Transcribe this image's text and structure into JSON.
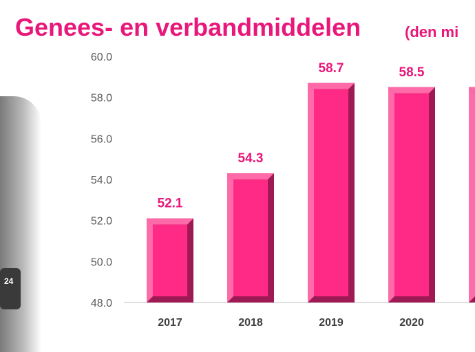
{
  "chart_data": {
    "type": "bar",
    "title": "Genees- en verbandmiddelen",
    "title_suffix": "(den mi",
    "categories": [
      "2017",
      "2018",
      "2019",
      "2020",
      ""
    ],
    "values": [
      52.1,
      54.3,
      58.7,
      58.5,
      58.5
    ],
    "data_labels": [
      "52.1",
      "54.3",
      "58.7",
      "58.5",
      ""
    ],
    "ylim": [
      48.0,
      60.0
    ],
    "yticks": [
      "48.0",
      "50.0",
      "52.0",
      "54.0",
      "56.0",
      "58.0",
      "60.0"
    ],
    "grid": false,
    "legend": "none",
    "colors": {
      "bar": "#ff2a85",
      "bar_dark": "#9e1a55",
      "bar_light": "#ff6aa8",
      "label": "#e8177a",
      "axis": "#bfbfbf"
    }
  },
  "decor": {
    "mic_label": "24"
  }
}
